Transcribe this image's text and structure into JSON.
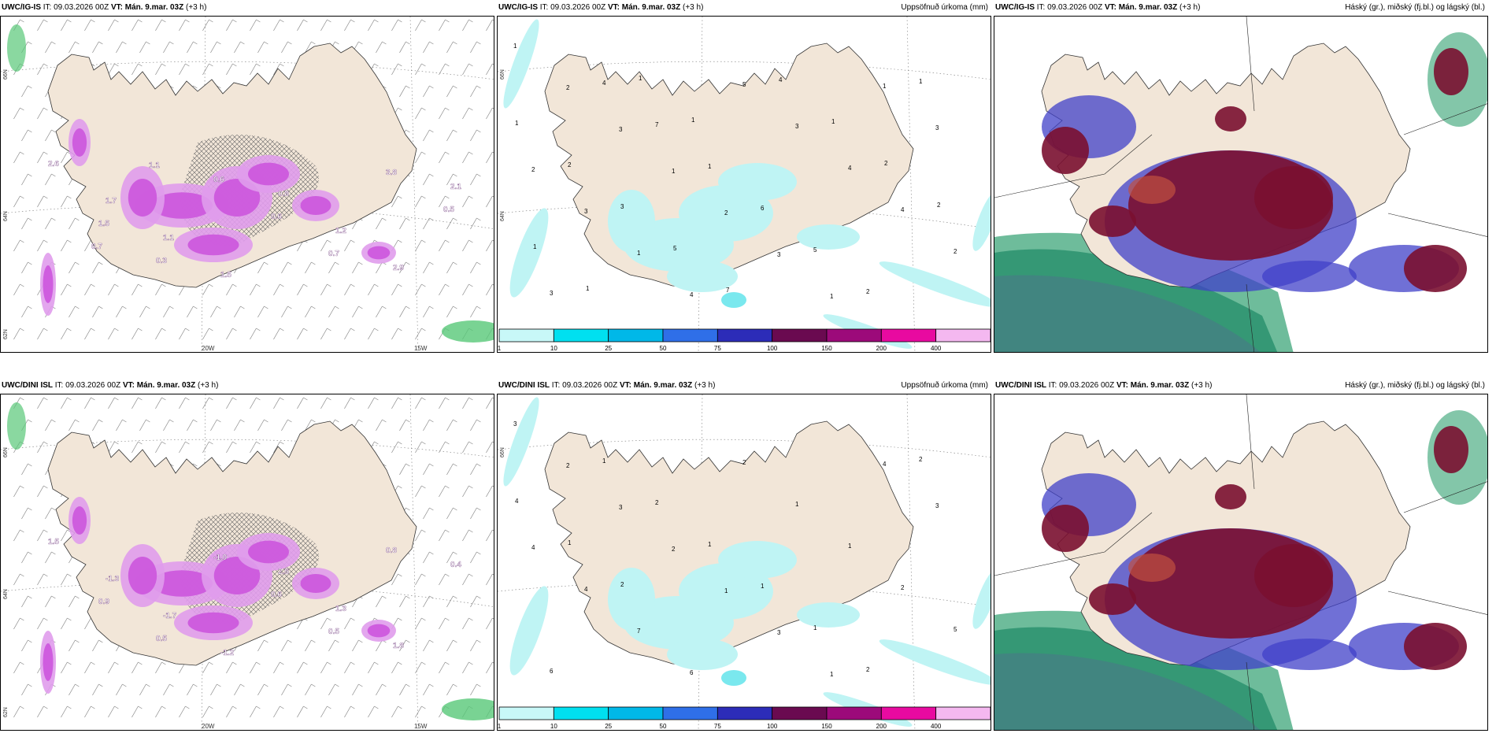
{
  "panels": [
    {
      "model": "UWC/IG-IS",
      "it_label": "IT:",
      "it": "09.03.2026 00Z",
      "vt_label": "VT:",
      "vt": "Mán. 9.mar. 03Z",
      "lead": "(+3 h)",
      "right_title": "",
      "type": "wind",
      "lon_labels": [
        "20W",
        "15W"
      ],
      "lat_labels": [
        "66N",
        "64N",
        "62N"
      ]
    },
    {
      "model": "UWC/IG-IS",
      "it_label": "IT:",
      "it": "09.03.2026 00Z",
      "vt_label": "VT:",
      "vt": "Mán. 9.mar. 03Z",
      "lead": "(+3 h)",
      "right_title": "Uppsöfnuð úrkoma (mm)",
      "type": "precip",
      "lat_labels": [
        "66N",
        "64N"
      ]
    },
    {
      "model": "UWC/IG-IS",
      "it_label": "IT:",
      "it": "09.03.2026 00Z",
      "vt_label": "VT:",
      "vt": "Mán. 9.mar. 03Z",
      "lead": "(+3 h)",
      "right_title": "Háský (gr.), miðský (fj.bl.) og lágský (bl.)",
      "type": "cloud"
    },
    {
      "model": "UWC/DINI ISL",
      "it_label": "IT:",
      "it": "09.03.2026 00Z",
      "vt_label": "VT:",
      "vt": "Mán. 9.mar. 03Z",
      "lead": "(+3 h)",
      "right_title": "",
      "type": "wind",
      "lon_labels": [
        "20W",
        "15W"
      ],
      "lat_labels": [
        "66N",
        "64N",
        "62N"
      ]
    },
    {
      "model": "UWC/DINI ISL",
      "it_label": "IT:",
      "it": "09.03.2026 00Z",
      "vt_label": "VT:",
      "vt": "Mán. 9.mar. 03Z",
      "lead": "(+3 h)",
      "right_title": "Uppsöfnuð úrkoma (mm)",
      "type": "precip",
      "lat_labels": [
        "66N"
      ]
    },
    {
      "model": "UWC/DINI ISL",
      "it_label": "IT:",
      "it": "09.03.2026 00Z",
      "vt_label": "VT:",
      "vt": "Mán. 9.mar. 03Z",
      "lead": "(+3 h)",
      "right_title": "Háský (gr.), miðský (fj.bl.) og lágský (bl.)",
      "type": "cloud"
    }
  ],
  "colorbar": {
    "ticks": [
      "1",
      "10",
      "25",
      "50",
      "75",
      "100",
      "150",
      "200",
      "400"
    ],
    "colors": [
      "#c8f8f8",
      "#00e0f0",
      "#00b8e8",
      "#2f6fe8",
      "#2c2cb8",
      "#6a0a50",
      "#9c0a7a",
      "#e80aa0",
      "#f4b8f0"
    ]
  },
  "colors": {
    "land": "#f2e6d8",
    "precip_light": "#bff4f4",
    "precip_mid": "#7ae8ee",
    "snow_magenta": "#cc55dd",
    "snow_light": "#e09cec",
    "green": "#58c878",
    "cloud_dark": "#7a1030",
    "cloud_red": "#c05040",
    "cloud_blue": "#4040c8",
    "cloud_green": "#30a070",
    "cloud_teal": "#20706a"
  },
  "wind_labels": {
    "top": [
      "2.6",
      "1.7",
      "1.1",
      "1.5",
      "0.8",
      "1.2",
      "2.9",
      "2.1",
      "1.5",
      "0.3",
      "0.6",
      "0.6",
      "0.7",
      "3.8",
      "0.5",
      "0.7",
      "1.1"
    ],
    "bottom": [
      "1.5",
      "-1.3",
      "-1.7",
      "-1.2",
      "2.5",
      "1.3",
      "1.8",
      "0.4",
      "0.9",
      "0.5",
      "-1.0",
      "0.6",
      "0.5",
      "0.8"
    ]
  },
  "precip_labels": {
    "top": [
      "1",
      "2",
      "3",
      "1",
      "2",
      "3",
      "1",
      "1",
      "3",
      "2",
      "3",
      "1",
      "4",
      "5",
      "3",
      "4",
      "4",
      "2",
      "3",
      "4",
      "7",
      "1",
      "6",
      "5",
      "2",
      "1",
      "1",
      "2",
      "3",
      "5",
      "7",
      "4",
      "1",
      "2",
      "2",
      "1",
      "1",
      "1",
      "1"
    ],
    "bottom": [
      "3",
      "2",
      "3",
      "2",
      "1",
      "3",
      "1",
      "4",
      "3",
      "4",
      "4",
      "7",
      "6",
      "2",
      "1",
      "1",
      "2",
      "5",
      "6",
      "1",
      "2",
      "1",
      "1",
      "1",
      "2",
      "2",
      "4",
      "1",
      "2"
    ]
  }
}
